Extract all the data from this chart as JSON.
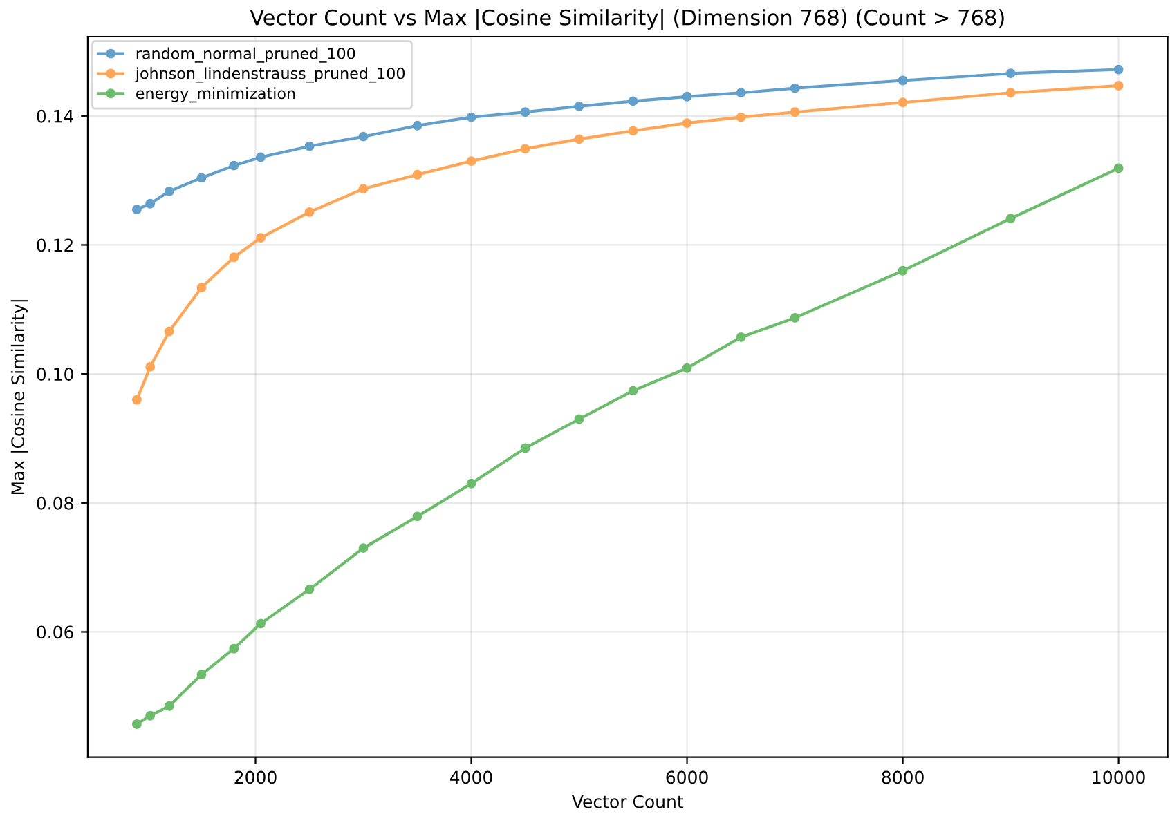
{
  "chart_data": {
    "type": "line",
    "title": "Vector Count vs Max |Cosine Similarity| (Dimension 768) (Count > 768)",
    "xlabel": "Vector Count",
    "ylabel": "Max |Cosine Similarity|",
    "x": [
      900,
      1024,
      1200,
      1500,
      1800,
      2048,
      2500,
      3000,
      3500,
      4000,
      4500,
      5000,
      5500,
      6000,
      6500,
      7000,
      8000,
      9000,
      10000
    ],
    "series": [
      {
        "name": "random_normal_pruned_100",
        "color": "#62a0cb",
        "values": [
          0.1255,
          0.1264,
          0.1283,
          0.1304,
          0.1323,
          0.1336,
          0.1353,
          0.1368,
          0.1385,
          0.1398,
          0.1406,
          0.1415,
          0.1423,
          0.143,
          0.1436,
          0.1443,
          0.1455,
          0.1466,
          0.1472
        ]
      },
      {
        "name": "johnson_lindenstrauss_pruned_100",
        "color": "#ffa556",
        "values": [
          0.096,
          0.1011,
          0.1066,
          0.1134,
          0.1181,
          0.1211,
          0.1251,
          0.1287,
          0.1309,
          0.133,
          0.1349,
          0.1364,
          0.1377,
          0.1389,
          0.1398,
          0.1406,
          0.1421,
          0.1436,
          0.1447
        ]
      },
      {
        "name": "energy_minimization",
        "color": "#6bbc6b",
        "values": [
          0.0457,
          0.047,
          0.0485,
          0.0534,
          0.0574,
          0.0613,
          0.0666,
          0.073,
          0.0779,
          0.083,
          0.0885,
          0.093,
          0.0974,
          0.1009,
          0.1057,
          0.1087,
          0.116,
          0.1241,
          0.1319
        ]
      }
    ],
    "xlim": [
      445,
      10455
    ],
    "ylim": [
      0.0406,
      0.1523
    ],
    "xticks": [
      2000,
      4000,
      6000,
      8000,
      10000
    ],
    "yticks": [
      {
        "value": 0.06,
        "label": "0.06"
      },
      {
        "value": 0.08,
        "label": "0.08"
      },
      {
        "value": 0.1,
        "label": "0.10"
      },
      {
        "value": 0.12,
        "label": "0.12"
      },
      {
        "value": 0.14,
        "label": "0.14"
      }
    ],
    "grid": true,
    "legend": "top left",
    "marker": "circle",
    "line_style": "solid"
  }
}
